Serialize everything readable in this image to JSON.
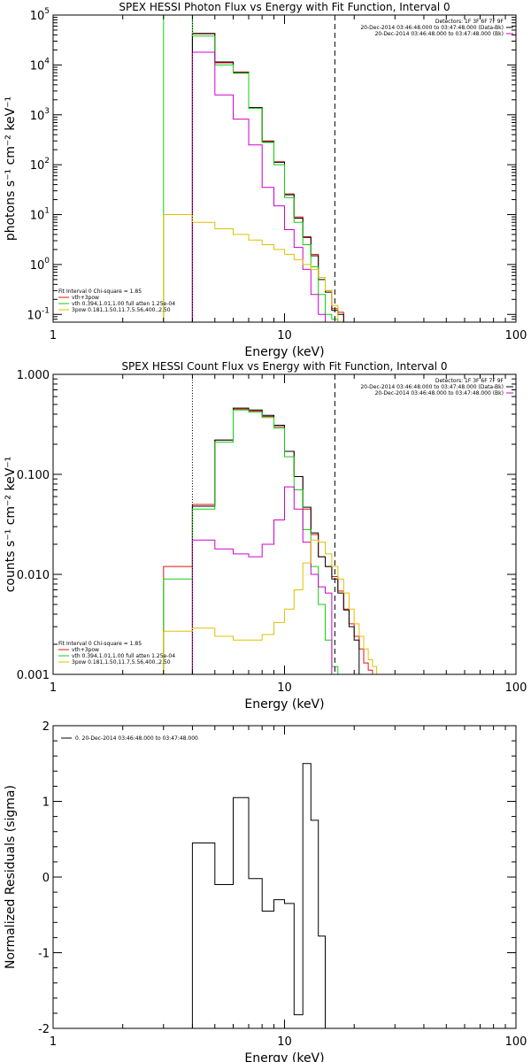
{
  "chart_data": [
    {
      "type": "line",
      "title": "SPEX HESSI Photon Flux vs Energy with Fit Function, Interval 0",
      "xlabel": "Energy (keV)",
      "ylabel": "photons s⁻¹ cm⁻² keV⁻¹",
      "xscale": "log",
      "yscale": "log",
      "xlim": [
        1,
        100
      ],
      "ylim": [
        0.07,
        100000
      ],
      "xticks": [
        "1",
        "10",
        "100"
      ],
      "yticks": [
        {
          "v": 0.1,
          "m": "10",
          "e": "-1"
        },
        {
          "v": 1,
          "m": "10",
          "e": "0"
        },
        {
          "v": 10,
          "m": "10",
          "e": "1"
        },
        {
          "v": 100,
          "m": "10",
          "e": "2"
        },
        {
          "v": 1000,
          "m": "10",
          "e": "3"
        },
        {
          "v": 10000,
          "m": "10",
          "e": "4"
        },
        {
          "v": 100000,
          "m": "10",
          "e": "5"
        }
      ],
      "fit_text": "Fit Interval 0   Chi-square = 1.85",
      "fit_legend": [
        {
          "label": "vth+3pow",
          "color": "#e81010"
        },
        {
          "label": "vth 0.394,1.01,1.00  full atten 1.25e-04",
          "color": "#10d010"
        },
        {
          "label": "3pow 0.181,1.50,11.7,5.56,400.,2.50",
          "color": "#e0c000"
        }
      ],
      "info_lines": [
        {
          "text": "Detectors: 1F 3F 6F 7F 9F",
          "color": ""
        },
        {
          "text": "20-Dec-2014 03:46:48.000 to 03:47:48.000 (Data-Bk)",
          "color": "#000000"
        },
        {
          "text": "20-Dec-2014 03:46:48.000 to 03:47:48.000 (Bk)",
          "color": "#d000d0"
        }
      ],
      "vlines": [
        {
          "x": 4.0,
          "color": "#000000",
          "dash": "1,2"
        },
        {
          "x": 16.5,
          "color": "#000000",
          "dash": "6,4"
        }
      ],
      "series": [
        {
          "color": "#e81010",
          "edges": [
            4,
            5,
            6,
            7,
            8,
            9,
            10,
            11,
            12,
            13,
            14,
            15,
            16,
            17,
            18
          ],
          "values": [
            42000,
            11000,
            7200,
            1400,
            300,
            115,
            26,
            9,
            3.6,
            1.6,
            0.55,
            0.3,
            0.13,
            0.11
          ]
        },
        {
          "color": "#000000",
          "edges": [
            4,
            5,
            6,
            7,
            8,
            9,
            10,
            11,
            12,
            13,
            14,
            15,
            16,
            17,
            18
          ],
          "values": [
            43000,
            11500,
            7000,
            1400,
            290,
            112,
            25,
            8.5,
            3.5,
            1.5,
            0.5,
            0.28,
            0.12,
            0.1
          ]
        },
        {
          "color": "#10d010",
          "edges": [
            3,
            4,
            5,
            6,
            7,
            8,
            9,
            10,
            11,
            12,
            13,
            14,
            15,
            16,
            17
          ],
          "values": [
            100000,
            38000,
            10000,
            6800,
            1350,
            280,
            100,
            22,
            7,
            2.5,
            0.9,
            0.25,
            0.1,
            0.08
          ]
        },
        {
          "color": "#d000d0",
          "edges": [
            4,
            5,
            6,
            7,
            8,
            9,
            10,
            11,
            12,
            13,
            14,
            15,
            16,
            17
          ],
          "values": [
            18000,
            2500,
            820,
            250,
            35,
            15,
            5,
            2.2,
            0.8,
            0.25,
            0.1,
            0.07,
            0.05
          ]
        },
        {
          "color": "#e0c000",
          "edges": [
            3,
            4,
            5,
            6,
            7,
            8,
            9,
            10,
            11,
            12,
            13,
            14,
            15,
            16,
            17
          ],
          "values": [
            10,
            7,
            5.2,
            4.0,
            3.1,
            2.5,
            2.0,
            1.6,
            1.25,
            1.0,
            0.8,
            0.55,
            0.3,
            0.15
          ]
        }
      ]
    },
    {
      "type": "line",
      "title": "SPEX HESSI Count Flux vs Energy with Fit Function, Interval 0",
      "xlabel": "Energy (keV)",
      "ylabel": "counts s⁻¹ cm⁻² keV⁻¹",
      "xscale": "log",
      "yscale": "log",
      "xlim": [
        1,
        100
      ],
      "ylim": [
        0.001,
        1.0
      ],
      "xticks": [
        "1",
        "10",
        "100"
      ],
      "yticks": [
        {
          "v": 0.001,
          "m": "0.001",
          "e": ""
        },
        {
          "v": 0.01,
          "m": "0.010",
          "e": ""
        },
        {
          "v": 0.1,
          "m": "0.100",
          "e": ""
        },
        {
          "v": 1.0,
          "m": "1.000",
          "e": ""
        }
      ],
      "fit_text": "Fit Interval 0   Chi-square = 1.85",
      "fit_legend": [
        {
          "label": "vth+3pow",
          "color": "#e81010"
        },
        {
          "label": "vth 0.394,1.01,1.00  full atten 1.25e-04",
          "color": "#10d010"
        },
        {
          "label": "3pow 0.181,1.50,11.7,5.56,400.,2.50",
          "color": "#e0c000"
        }
      ],
      "info_lines": [
        {
          "text": "Detectors: 1F 3F 6F 7F 9F",
          "color": ""
        },
        {
          "text": "20-Dec-2014 03:46:48.000 to 03:47:48.000 (Data-Bk)",
          "color": "#000000"
        },
        {
          "text": "20-Dec-2014 03:46:48.000 to 03:47:48.000 (Bk)",
          "color": "#d000d0"
        }
      ],
      "vlines": [
        {
          "x": 4.0,
          "color": "#000000",
          "dash": "1,2"
        },
        {
          "x": 16.5,
          "color": "#000000",
          "dash": "6,4"
        }
      ],
      "series": [
        {
          "color": "#e81010",
          "edges": [
            3,
            4,
            5,
            6,
            7,
            8,
            9,
            10,
            11,
            12,
            13,
            14,
            15,
            16,
            17,
            18,
            19,
            20,
            21,
            22,
            23,
            24,
            25,
            26,
            27
          ],
          "values": [
            0.012,
            0.05,
            0.22,
            0.45,
            0.43,
            0.38,
            0.3,
            0.17,
            0.095,
            0.045,
            0.025,
            0.015,
            0.012,
            0.0095,
            0.0068,
            0.0045,
            0.0032,
            0.0024,
            0.0018,
            0.0013,
            0.0011,
            0.001,
            0.001,
            0.001
          ]
        },
        {
          "color": "#000000",
          "edges": [
            4,
            5,
            6,
            7,
            8,
            9,
            10,
            11,
            12,
            13,
            14,
            15,
            16,
            17,
            18,
            19,
            20,
            21
          ],
          "values": [
            0.048,
            0.22,
            0.46,
            0.44,
            0.39,
            0.31,
            0.17,
            0.095,
            0.047,
            0.026,
            0.015,
            0.012,
            0.009,
            0.0065,
            0.0044,
            0.003,
            0.0022
          ]
        },
        {
          "color": "#10d010",
          "edges": [
            3,
            4,
            5,
            6,
            7,
            8,
            9,
            10,
            11,
            12,
            13,
            14,
            15,
            16,
            17,
            18
          ],
          "values": [
            0.009,
            0.045,
            0.21,
            0.44,
            0.42,
            0.37,
            0.29,
            0.15,
            0.07,
            0.028,
            0.012,
            0.005,
            0.0022,
            0.0012,
            0.001
          ]
        },
        {
          "color": "#d000d0",
          "edges": [
            4,
            5,
            6,
            7,
            8,
            9,
            10,
            11,
            12,
            13,
            14,
            15,
            16
          ],
          "values": [
            0.022,
            0.018,
            0.016,
            0.015,
            0.02,
            0.035,
            0.075,
            0.045,
            0.021,
            0.01,
            0.0075,
            0.0065
          ]
        },
        {
          "color": "#e0c000",
          "edges": [
            3,
            4,
            5,
            6,
            7,
            8,
            9,
            10,
            11,
            12,
            13,
            14,
            15,
            16,
            17,
            18,
            19,
            20,
            21,
            22,
            23,
            24,
            25,
            26,
            27,
            28
          ],
          "values": [
            0.0027,
            0.0029,
            0.0024,
            0.0022,
            0.0022,
            0.0025,
            0.0033,
            0.0045,
            0.007,
            0.013,
            0.022,
            0.021,
            0.016,
            0.012,
            0.009,
            0.0065,
            0.0045,
            0.0032,
            0.0024,
            0.0018,
            0.0014,
            0.0012,
            0.001,
            0.001,
            0.001
          ]
        }
      ]
    },
    {
      "type": "line",
      "title": "",
      "xlabel": "Energy (keV)",
      "ylabel": "Normalized Residuals (sigma)",
      "xscale": "log",
      "yscale": "linear",
      "xlim": [
        1,
        100
      ],
      "ylim": [
        -2,
        2
      ],
      "xticks": [
        "1",
        "10",
        "100"
      ],
      "yticks": [
        {
          "v": -2,
          "m": "-2",
          "e": ""
        },
        {
          "v": -1,
          "m": "-1",
          "e": ""
        },
        {
          "v": 0,
          "m": "0",
          "e": ""
        },
        {
          "v": 1,
          "m": "1",
          "e": ""
        },
        {
          "v": 2,
          "m": "2",
          "e": ""
        }
      ],
      "legend": [
        {
          "label": "0. 20-Dec-2014 03:46:48.000 to 03:47:48.000",
          "color": "#000000"
        }
      ],
      "series": [
        {
          "color": "#000000",
          "edges": [
            4,
            5,
            6,
            7,
            8,
            9,
            10,
            11,
            12,
            13,
            14,
            15,
            16.5
          ],
          "values": [
            0.45,
            -0.1,
            1.05,
            -0.02,
            -0.45,
            -0.3,
            -0.35,
            -1.82,
            1.5,
            0.75,
            -0.78,
            -2.1
          ]
        }
      ]
    }
  ]
}
